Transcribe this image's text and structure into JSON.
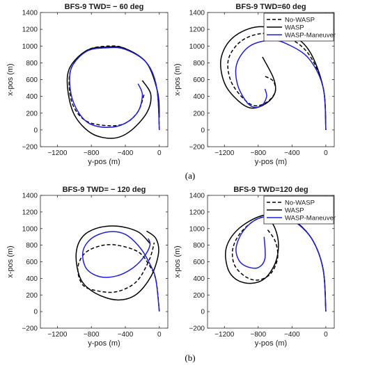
{
  "captions": [
    "(a)",
    "(b)"
  ],
  "colors": {
    "no_wasp": "#000000",
    "wasp": "#000000",
    "maneuver": "#1f1fd6",
    "axis": "#262626"
  },
  "chart_data": [
    {
      "type": "line",
      "title": "BFS-9  TWD= − 60 deg",
      "xlabel": "y-pos (m)",
      "ylabel": "x-pos (m)",
      "xlim": [
        -1400,
        100
      ],
      "ylim": [
        -200,
        1400
      ],
      "xticks": [
        -1200,
        -800,
        -400,
        0
      ],
      "xtick_labels": [
        "−1200",
        "−800",
        "−400",
        "0"
      ],
      "yticks": [
        -200,
        0,
        200,
        400,
        600,
        800,
        1000,
        1200,
        1400
      ],
      "ytick_labels": [
        "−200",
        "0",
        "200",
        "400",
        "600",
        "800",
        "1000",
        "1200",
        "1400"
      ],
      "grid": false,
      "legend": "none",
      "series": [
        {
          "name": "No-WASP",
          "style": "dashed",
          "points": [
            [
              0,
              0
            ],
            [
              -30,
              500
            ],
            [
              -150,
              800
            ],
            [
              -400,
              970
            ],
            [
              -600,
              1000
            ],
            [
              -850,
              950
            ],
            [
              -1030,
              750
            ],
            [
              -1060,
              500
            ],
            [
              -1000,
              260
            ],
            [
              -850,
              100
            ],
            [
              -600,
              50
            ],
            [
              -400,
              80
            ],
            [
              -250,
              220
            ],
            [
              -180,
              420
            ]
          ]
        },
        {
          "name": "WASP",
          "style": "solid",
          "points": [
            [
              0,
              150
            ],
            [
              -20,
              450
            ],
            [
              -150,
              800
            ],
            [
              -400,
              970
            ],
            [
              -600,
              990
            ],
            [
              -850,
              950
            ],
            [
              -1050,
              750
            ],
            [
              -1080,
              500
            ],
            [
              -1000,
              180
            ],
            [
              -800,
              -40
            ],
            [
              -550,
              -100
            ],
            [
              -350,
              -20
            ],
            [
              -150,
              200
            ],
            [
              -100,
              420
            ],
            [
              -200,
              590
            ]
          ]
        },
        {
          "name": "WASP-Maneuver",
          "style": "solid",
          "points": [
            [
              0,
              0
            ],
            [
              -30,
              500
            ],
            [
              -150,
              800
            ],
            [
              -400,
              960
            ],
            [
              -600,
              980
            ],
            [
              -850,
              940
            ],
            [
              -1030,
              750
            ],
            [
              -1050,
              500
            ],
            [
              -980,
              260
            ],
            [
              -830,
              80
            ],
            [
              -600,
              30
            ],
            [
              -400,
              80
            ],
            [
              -250,
              220
            ],
            [
              -200,
              420
            ],
            [
              -250,
              550
            ]
          ]
        }
      ]
    },
    {
      "type": "line",
      "title": "BFS-9  TWD=60 deg",
      "xlabel": "y-pos (m)",
      "ylabel": "x-pos (m)",
      "xlim": [
        -1400,
        100
      ],
      "ylim": [
        -200,
        1400
      ],
      "xticks": [
        -1200,
        -800,
        -400,
        0
      ],
      "xtick_labels": [
        "−1200",
        "−800",
        "−400",
        "0"
      ],
      "yticks": [
        -200,
        0,
        200,
        400,
        600,
        800,
        1000,
        1200,
        1400
      ],
      "ytick_labels": [
        "−200",
        "0",
        "200",
        "400",
        "600",
        "800",
        "1000",
        "1200",
        "1400"
      ],
      "grid": false,
      "legend": "top-right",
      "series": [
        {
          "name": "No-WASP",
          "style": "dashed",
          "points": [
            [
              0,
              0
            ],
            [
              -30,
              500
            ],
            [
              -200,
              900
            ],
            [
              -450,
              1100
            ],
            [
              -750,
              1150
            ],
            [
              -1000,
              1060
            ],
            [
              -1150,
              850
            ],
            [
              -1130,
              600
            ],
            [
              -1000,
              400
            ],
            [
              -850,
              290
            ],
            [
              -700,
              330
            ],
            [
              -600,
              450
            ],
            [
              -620,
              580
            ],
            [
              -720,
              640
            ]
          ]
        },
        {
          "name": "WASP",
          "style": "solid",
          "points": [
            [
              0,
              0
            ],
            [
              -30,
              500
            ],
            [
              -200,
              950
            ],
            [
              -450,
              1150
            ],
            [
              -800,
              1230
            ],
            [
              -1100,
              1100
            ],
            [
              -1240,
              850
            ],
            [
              -1200,
              560
            ],
            [
              -1050,
              360
            ],
            [
              -880,
              260
            ],
            [
              -700,
              320
            ],
            [
              -600,
              450
            ],
            [
              -620,
              620
            ],
            [
              -750,
              870
            ]
          ]
        },
        {
          "name": "WASP-Maneuver",
          "style": "solid",
          "points": [
            [
              0,
              0
            ],
            [
              -30,
              500
            ],
            [
              -200,
              850
            ],
            [
              -450,
              1020
            ],
            [
              -650,
              1070
            ],
            [
              -900,
              1000
            ],
            [
              -1050,
              800
            ],
            [
              -1050,
              560
            ],
            [
              -950,
              350
            ],
            [
              -850,
              270
            ],
            [
              -750,
              300
            ],
            [
              -700,
              400
            ],
            [
              -720,
              490
            ]
          ]
        }
      ]
    },
    {
      "type": "line",
      "title": "BFS-9  TWD= − 120 deg",
      "xlabel": "y-pos (m)",
      "ylabel": "x-pos (m)",
      "xlim": [
        -1400,
        100
      ],
      "ylim": [
        -200,
        1400
      ],
      "xticks": [
        -1200,
        -800,
        -400,
        0
      ],
      "xtick_labels": [
        "−1200",
        "−800",
        "−400",
        "0"
      ],
      "yticks": [
        -200,
        0,
        200,
        400,
        600,
        800,
        1000,
        1200,
        1400
      ],
      "ytick_labels": [
        "−200",
        "0",
        "200",
        "400",
        "600",
        "800",
        "1000",
        "1200",
        "1400"
      ],
      "grid": false,
      "legend": "none",
      "series": [
        {
          "name": "No-WASP",
          "style": "dashed",
          "points": [
            [
              0,
              0
            ],
            [
              -40,
              380
            ],
            [
              -120,
              560
            ],
            [
              -250,
              720
            ],
            [
              -500,
              800
            ],
            [
              -700,
              790
            ],
            [
              -880,
              700
            ],
            [
              -960,
              520
            ],
            [
              -900,
              320
            ],
            [
              -730,
              250
            ],
            [
              -500,
              240
            ],
            [
              -270,
              360
            ],
            [
              -120,
              620
            ],
            [
              -60,
              830
            ]
          ]
        },
        {
          "name": "WASP",
          "style": "solid",
          "points": [
            [
              -110,
              820
            ],
            [
              -250,
              960
            ],
            [
              -500,
              1030
            ],
            [
              -750,
              1000
            ],
            [
              -920,
              880
            ],
            [
              -980,
              660
            ],
            [
              -920,
              380
            ],
            [
              -750,
              220
            ],
            [
              -500,
              140
            ],
            [
              -280,
              200
            ],
            [
              -100,
              420
            ],
            [
              -10,
              700
            ],
            [
              -40,
              880
            ],
            [
              -150,
              970
            ]
          ]
        },
        {
          "name": "WASP-Maneuver",
          "style": "solid",
          "points": [
            [
              0,
              0
            ],
            [
              -40,
              380
            ],
            [
              -100,
              550
            ],
            [
              -220,
              760
            ],
            [
              -400,
              930
            ],
            [
              -600,
              960
            ],
            [
              -800,
              880
            ],
            [
              -900,
              720
            ],
            [
              -860,
              520
            ],
            [
              -700,
              420
            ],
            [
              -500,
              430
            ],
            [
              -320,
              520
            ],
            [
              -180,
              660
            ],
            [
              -110,
              800
            ],
            [
              -130,
              880
            ]
          ]
        }
      ]
    },
    {
      "type": "line",
      "title": "BFS-9  TWD=120 deg",
      "xlabel": "y-pos (m)",
      "ylabel": "x-pos (m)",
      "xlim": [
        -1400,
        100
      ],
      "ylim": [
        -200,
        1400
      ],
      "xticks": [
        -1200,
        -800,
        -400,
        0
      ],
      "xtick_labels": [
        "−1200",
        "−800",
        "−400",
        "0"
      ],
      "yticks": [
        -200,
        0,
        200,
        400,
        600,
        800,
        1000,
        1200,
        1400
      ],
      "ytick_labels": [
        "−200",
        "0",
        "200",
        "400",
        "600",
        "800",
        "1000",
        "1200",
        "1400"
      ],
      "grid": false,
      "legend": "top-right",
      "series": [
        {
          "name": "No-WASP",
          "style": "dashed",
          "points": [
            [
              0,
              0
            ],
            [
              -30,
              500
            ],
            [
              -150,
              850
            ],
            [
              -350,
              1080
            ],
            [
              -550,
              1160
            ],
            [
              -800,
              1120
            ],
            [
              -1000,
              960
            ],
            [
              -1100,
              760
            ],
            [
              -1080,
              560
            ],
            [
              -950,
              420
            ],
            [
              -800,
              380
            ],
            [
              -650,
              460
            ],
            [
              -570,
              650
            ],
            [
              -600,
              850
            ],
            [
              -700,
              1000
            ]
          ]
        },
        {
          "name": "WASP",
          "style": "solid",
          "points": [
            [
              0,
              0
            ],
            [
              -30,
              500
            ],
            [
              -150,
              850
            ],
            [
              -350,
              1080
            ],
            [
              -550,
              1170
            ],
            [
              -800,
              1140
            ],
            [
              -1050,
              980
            ],
            [
              -1180,
              760
            ],
            [
              -1160,
              520
            ],
            [
              -1050,
              380
            ],
            [
              -880,
              340
            ],
            [
              -720,
              400
            ],
            [
              -600,
              580
            ],
            [
              -560,
              800
            ],
            [
              -600,
              1000
            ],
            [
              -720,
              1210
            ]
          ]
        },
        {
          "name": "WASP-Maneuver",
          "style": "solid",
          "points": [
            [
              0,
              0
            ],
            [
              -30,
              500
            ],
            [
              -150,
              850
            ],
            [
              -350,
              1070
            ],
            [
              -550,
              1150
            ],
            [
              -800,
              1120
            ],
            [
              -970,
              980
            ],
            [
              -1060,
              780
            ],
            [
              -1030,
              620
            ],
            [
              -930,
              540
            ],
            [
              -800,
              530
            ],
            [
              -720,
              640
            ],
            [
              -730,
              900
            ]
          ]
        }
      ]
    }
  ]
}
